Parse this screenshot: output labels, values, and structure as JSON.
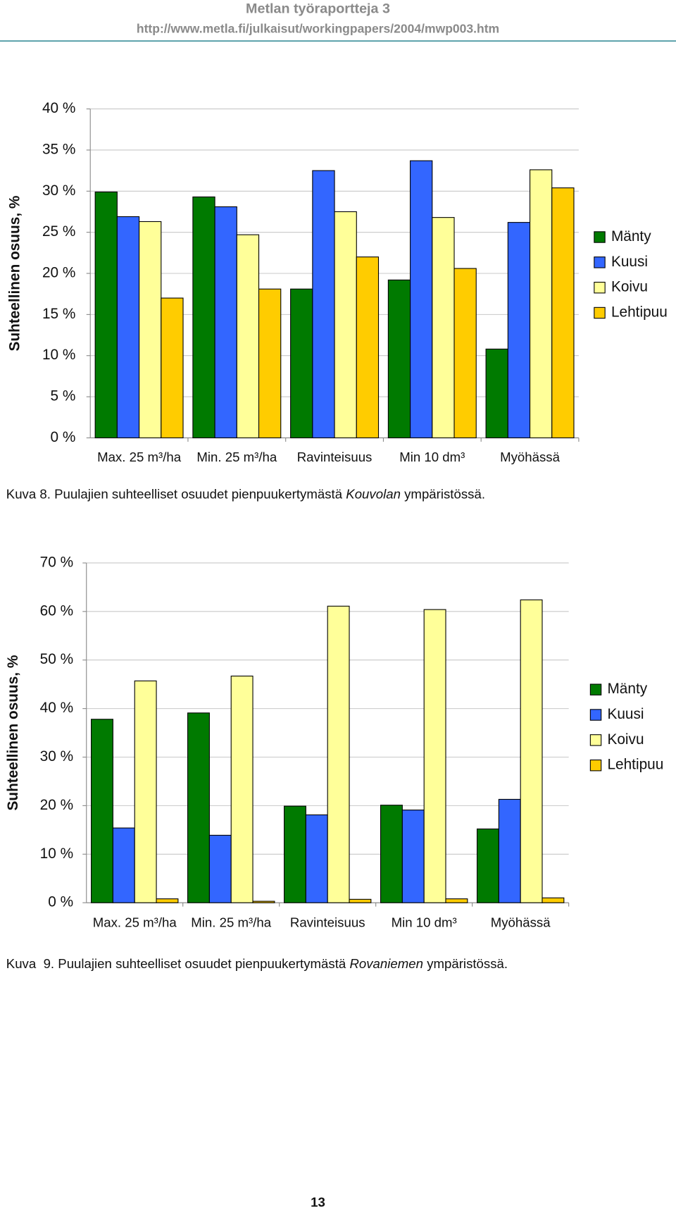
{
  "header": {
    "title": "Metlan työraportteja 3",
    "url": "http://www.metla.fi/julkaisut/workingpapers/2004/mwp003.htm"
  },
  "chart_data": [
    {
      "type": "bar",
      "y_label": "Suhteellinen osuus, %",
      "categories": [
        "Max. 25 m³/ha",
        "Min. 25 m³/ha",
        "Ravinteisuus",
        "Min 10 dm³",
        "Myöhässä"
      ],
      "series": [
        {
          "name": "Mänty",
          "color": "#007a00",
          "values": [
            29.9,
            29.3,
            18.1,
            19.2,
            10.8
          ]
        },
        {
          "name": "Kuusi",
          "color": "#3366ff",
          "values": [
            26.9,
            28.1,
            32.5,
            33.7,
            26.2
          ]
        },
        {
          "name": "Koivu",
          "color": "#ffff99",
          "values": [
            26.3,
            24.7,
            27.5,
            26.8,
            32.6
          ]
        },
        {
          "name": "Lehtipuu",
          "color": "#ffcc00",
          "values": [
            17.0,
            18.1,
            22.0,
            20.6,
            30.4
          ]
        }
      ],
      "ylim": [
        0,
        40
      ],
      "yticks": [
        {
          "value": 0,
          "label": "0 %"
        },
        {
          "value": 5,
          "label": "5 %"
        },
        {
          "value": 10,
          "label": "10 %"
        },
        {
          "value": 15,
          "label": "15 %"
        },
        {
          "value": 20,
          "label": "20 %"
        },
        {
          "value": 25,
          "label": "25 %"
        },
        {
          "value": 30,
          "label": "30 %"
        },
        {
          "value": 35,
          "label": "35 %"
        },
        {
          "value": 40,
          "label": "40 %"
        }
      ],
      "grid": true,
      "legend": "right",
      "caption": [
        "Kuva 8. Puulajien suhteelliset osuudet pienpuukertymästä ",
        "Kouvolan",
        " ympäristössä."
      ]
    },
    {
      "type": "bar",
      "y_label": "Suhteellinen osuus, %",
      "categories": [
        "Max. 25 m³/ha",
        "Min. 25 m³/ha",
        "Ravinteisuus",
        "Min 10 dm³",
        "Myöhässä"
      ],
      "series": [
        {
          "name": "Mänty",
          "color": "#007a00",
          "values": [
            37.8,
            39.1,
            19.9,
            20.1,
            15.2
          ]
        },
        {
          "name": "Kuusi",
          "color": "#3366ff",
          "values": [
            15.4,
            13.9,
            18.1,
            19.1,
            21.3
          ]
        },
        {
          "name": "Koivu",
          "color": "#ffff99",
          "values": [
            45.7,
            46.7,
            61.1,
            60.4,
            62.4
          ]
        },
        {
          "name": "Lehtipuu",
          "color": "#ffcc00",
          "values": [
            0.8,
            0.3,
            0.7,
            0.8,
            1.0
          ]
        }
      ],
      "ylim": [
        0,
        70
      ],
      "yticks": [
        {
          "value": 0,
          "label": "0 %"
        },
        {
          "value": 10,
          "label": "10 %"
        },
        {
          "value": 20,
          "label": "20 %"
        },
        {
          "value": 30,
          "label": "30 %"
        },
        {
          "value": 40,
          "label": "40 %"
        },
        {
          "value": 50,
          "label": "50 %"
        },
        {
          "value": 60,
          "label": "60 %"
        },
        {
          "value": 70,
          "label": "70 %"
        }
      ],
      "grid": true,
      "legend": "right",
      "caption": [
        "Kuva  9. Puulajien suhteelliset osuudet pienpuukertymästä ",
        "Rovaniemen",
        " ympäristössä."
      ]
    }
  ],
  "page_number": "13"
}
